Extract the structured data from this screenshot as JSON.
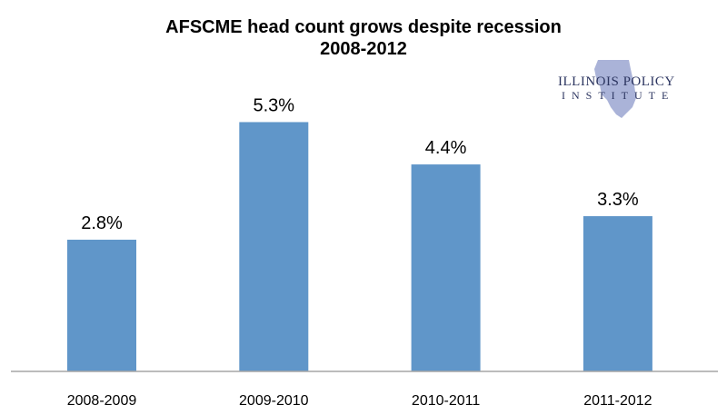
{
  "chart_data": {
    "type": "bar",
    "title": "AFSCME head count grows despite recession",
    "subtitle": "2008-2012",
    "categories": [
      "2008-2009",
      "2009-2010",
      "2010-2011",
      "2011-2012"
    ],
    "values": [
      2.8,
      5.3,
      4.4,
      3.3
    ],
    "data_labels": [
      "2.8%",
      "5.3%",
      "4.4%",
      "3.3%"
    ],
    "xlabel": "",
    "ylabel": "",
    "ylim": [
      0,
      6
    ],
    "grid": false,
    "bar_color": "#6096c9"
  },
  "logo": {
    "line1": "ILLINOIS POLICY",
    "line2": "INSTITUTE"
  }
}
